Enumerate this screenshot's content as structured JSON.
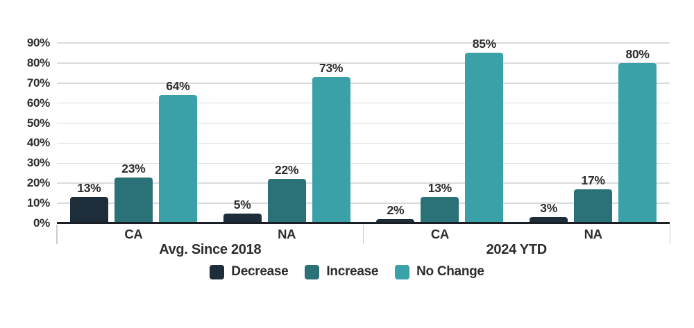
{
  "chart_data": {
    "type": "bar",
    "y_axis": {
      "min": 0,
      "max": 90,
      "step": 10,
      "tick_suffix": "%"
    },
    "group_labels": [
      "Avg. Since 2018",
      "2024 YTD"
    ],
    "categories": [
      {
        "label": "CA",
        "group": "Avg. Since 2018"
      },
      {
        "label": "NA",
        "group": "Avg. Since 2018"
      },
      {
        "label": "CA",
        "group": "2024 YTD"
      },
      {
        "label": "NA",
        "group": "2024 YTD"
      }
    ],
    "series": [
      {
        "name": "Decrease",
        "color": "#1e2d3a",
        "values": [
          13,
          5,
          2,
          3
        ]
      },
      {
        "name": "Increase",
        "color": "#2b7278",
        "values": [
          23,
          22,
          13,
          17
        ]
      },
      {
        "name": "No Change",
        "color": "#3aa1a8",
        "values": [
          64,
          73,
          85,
          80
        ]
      }
    ],
    "value_label_suffix": "%",
    "grid": true,
    "legend_position": "bottom"
  },
  "style": {
    "background": "#ffffff",
    "text_color": "#2d2d2d",
    "gridline_color": "#d8dbdd",
    "axis_color": "#191f24",
    "tick_color": "#c9cccf"
  }
}
